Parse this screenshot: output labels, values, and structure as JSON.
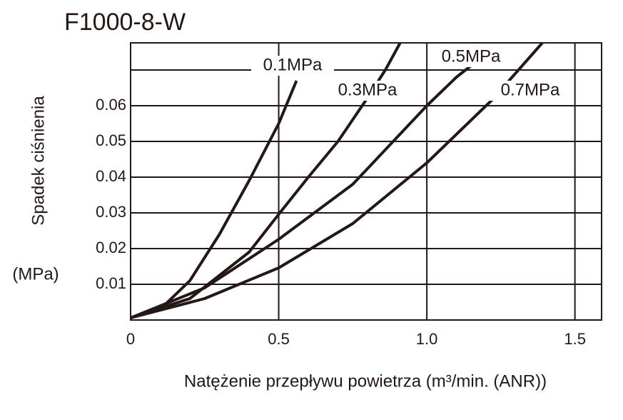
{
  "chart_data": {
    "type": "line",
    "title": "F1000-8-W",
    "y_label": "Spadek ciśnienia",
    "y_unit": "(MPa)",
    "x_label": "Natężenie przepływu powietrza (m³/min. (ANR))",
    "xlim": [
      0,
      1.59
    ],
    "ylim": [
      0,
      0.0776
    ],
    "xticks": [
      0,
      0.5,
      {
        "value": 1.0,
        "label": "1.0"
      },
      1.5
    ],
    "yticks": [
      0.01,
      0.02,
      0.03,
      0.04,
      0.05,
      0.06
    ],
    "extra_gridlines": [
      0.07
    ],
    "grid": true,
    "series": [
      {
        "name": "0.1MPa",
        "color": "#231815",
        "x": [
          0,
          0.1,
          0.2,
          0.3,
          0.4,
          0.5,
          0.56
        ],
        "values": [
          0.0006,
          0.003,
          0.011,
          0.024,
          0.039,
          0.055,
          0.067
        ]
      },
      {
        "name": "0.3MPa",
        "color": "#231815",
        "x": [
          0,
          0.2,
          0.4,
          0.5,
          0.6,
          0.7,
          0.79,
          0.86,
          0.91
        ],
        "values": [
          0.0006,
          0.006,
          0.019,
          0.0296,
          0.04,
          0.05,
          0.061,
          0.07,
          0.0776
        ]
      },
      {
        "name": "0.5MPa",
        "color": "#231815",
        "x": [
          0,
          0.25,
          0.5,
          0.75,
          1.0,
          1.1,
          1.2
        ],
        "values": [
          0.0006,
          0.009,
          0.0226,
          0.038,
          0.06,
          0.068,
          0.0745
        ]
      },
      {
        "name": "0.7MPa",
        "color": "#231815",
        "x": [
          0,
          0.25,
          0.5,
          0.75,
          1.0,
          1.22,
          1.39
        ],
        "values": [
          0.0006,
          0.006,
          0.0146,
          0.027,
          0.044,
          0.0616,
          0.0776
        ]
      }
    ]
  }
}
